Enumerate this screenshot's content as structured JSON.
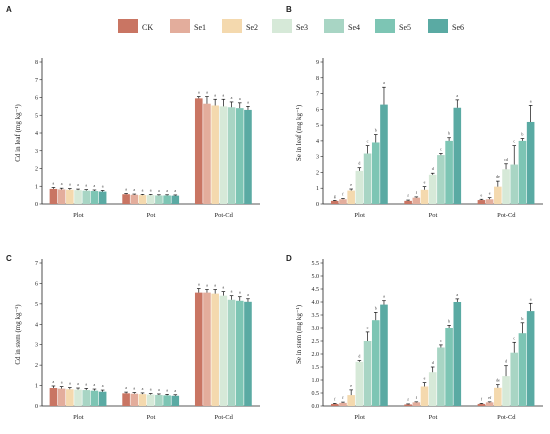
{
  "legend": {
    "items": [
      {
        "name": "CK",
        "color": "#c97563"
      },
      {
        "name": "Se1",
        "color": "#e3ad9c"
      },
      {
        "name": "Se2",
        "color": "#f4d9ae"
      },
      {
        "name": "Se3",
        "color": "#d6e9d8"
      },
      {
        "name": "Se4",
        "color": "#a8d5c4"
      },
      {
        "name": "Se5",
        "color": "#7dc5b4"
      },
      {
        "name": "Se6",
        "color": "#5aaaa3"
      }
    ]
  },
  "chart_data": [
    {
      "panel": "A",
      "type": "bar",
      "ylabel": "Cd in leaf (mg kg⁻¹)",
      "ylim": [
        0,
        8
      ],
      "yticks": [
        "0",
        "1",
        "2",
        "3",
        "4",
        "5",
        "6",
        "7",
        "8"
      ],
      "categories": [
        "Plot",
        "Pot",
        "Pot-Cd"
      ],
      "series": [
        {
          "name": "CK",
          "values": [
            0.85,
            0.55,
            5.95
          ],
          "errors": [
            0.08,
            0.04,
            0.1
          ],
          "letters": [
            "a",
            "a",
            "a"
          ]
        },
        {
          "name": "Se1",
          "values": [
            0.82,
            0.52,
            5.65
          ],
          "errors": [
            0.07,
            0.04,
            0.4
          ],
          "letters": [
            "a",
            "a",
            "a"
          ]
        },
        {
          "name": "Se2",
          "values": [
            0.8,
            0.5,
            5.55
          ],
          "errors": [
            0.07,
            0.04,
            0.35
          ],
          "letters": [
            "a",
            "a",
            "a"
          ]
        },
        {
          "name": "Se3",
          "values": [
            0.78,
            0.5,
            5.5
          ],
          "errors": [
            0.06,
            0.04,
            0.4
          ],
          "letters": [
            "a",
            "a",
            "a"
          ]
        },
        {
          "name": "Se4",
          "values": [
            0.75,
            0.48,
            5.45
          ],
          "errors": [
            0.06,
            0.04,
            0.3
          ],
          "letters": [
            "a",
            "a",
            "a"
          ]
        },
        {
          "name": "Se5",
          "values": [
            0.73,
            0.48,
            5.4
          ],
          "errors": [
            0.06,
            0.04,
            0.3
          ],
          "letters": [
            "a",
            "a",
            "a"
          ]
        },
        {
          "name": "Se6",
          "values": [
            0.7,
            0.47,
            5.3
          ],
          "errors": [
            0.06,
            0.04,
            0.2
          ],
          "letters": [
            "a",
            "a",
            "a"
          ]
        }
      ]
    },
    {
      "panel": "B",
      "type": "bar",
      "ylabel": "Se in leaf (mg kg⁻¹)",
      "ylim": [
        0,
        9
      ],
      "yticks": [
        "0",
        "1",
        "2",
        "3",
        "4",
        "5",
        "6",
        "7",
        "8",
        "9"
      ],
      "categories": [
        "Plot",
        "Pot",
        "Pot-Cd"
      ],
      "series": [
        {
          "name": "CK",
          "values": [
            0.2,
            0.2,
            0.25
          ],
          "errors": [
            0.03,
            0.05,
            0.05
          ],
          "letters": [
            "g",
            "f",
            "e"
          ]
        },
        {
          "name": "Se1",
          "values": [
            0.3,
            0.4,
            0.3
          ],
          "errors": [
            0.05,
            0.05,
            0.1
          ],
          "letters": [
            "f",
            "f",
            "e"
          ]
        },
        {
          "name": "Se2",
          "values": [
            0.85,
            0.9,
            1.1
          ],
          "errors": [
            0.1,
            0.2,
            0.35
          ],
          "letters": [
            "e",
            "e",
            "de"
          ]
        },
        {
          "name": "Se3",
          "values": [
            2.1,
            1.85,
            2.2
          ],
          "errors": [
            0.2,
            0.1,
            0.35
          ],
          "letters": [
            "d",
            "d",
            "cd"
          ]
        },
        {
          "name": "Se4",
          "values": [
            3.2,
            3.1,
            2.5
          ],
          "errors": [
            0.5,
            0.1,
            1.2
          ],
          "letters": [
            "c",
            "c",
            "c"
          ]
        },
        {
          "name": "Se5",
          "values": [
            3.9,
            4.0,
            4.0
          ],
          "errors": [
            0.5,
            0.2,
            0.15
          ],
          "letters": [
            "b",
            "b",
            "b"
          ]
        },
        {
          "name": "Se6",
          "values": [
            6.3,
            6.1,
            5.2
          ],
          "errors": [
            1.1,
            0.5,
            1.05
          ],
          "letters": [
            "a",
            "a",
            "a"
          ]
        }
      ]
    },
    {
      "panel": "C",
      "type": "bar",
      "ylabel": "Cd in stem (mg kg⁻¹)",
      "ylim": [
        0,
        7
      ],
      "yticks": [
        "0",
        "1",
        "2",
        "3",
        "4",
        "5",
        "6",
        "7"
      ],
      "categories": [
        "Plot",
        "Pot",
        "Pot-Cd"
      ],
      "series": [
        {
          "name": "CK",
          "values": [
            0.88,
            0.62,
            5.55
          ],
          "errors": [
            0.1,
            0.06,
            0.2
          ],
          "letters": [
            "a",
            "a",
            "a"
          ]
        },
        {
          "name": "Se1",
          "values": [
            0.85,
            0.6,
            5.55
          ],
          "errors": [
            0.1,
            0.06,
            0.15
          ],
          "letters": [
            "a",
            "a",
            "a"
          ]
        },
        {
          "name": "Se2",
          "values": [
            0.82,
            0.58,
            5.5
          ],
          "errors": [
            0.08,
            0.06,
            0.2
          ],
          "letters": [
            "a",
            "a",
            "a"
          ]
        },
        {
          "name": "Se3",
          "values": [
            0.8,
            0.56,
            5.4
          ],
          "errors": [
            0.08,
            0.05,
            0.2
          ],
          "letters": [
            "a",
            "a",
            "a"
          ]
        },
        {
          "name": "Se4",
          "values": [
            0.78,
            0.54,
            5.2
          ],
          "errors": [
            0.08,
            0.05,
            0.2
          ],
          "letters": [
            "a",
            "a",
            "a"
          ]
        },
        {
          "name": "Se5",
          "values": [
            0.75,
            0.52,
            5.15
          ],
          "errors": [
            0.08,
            0.05,
            0.2
          ],
          "letters": [
            "a",
            "a",
            "a"
          ]
        },
        {
          "name": "Se6",
          "values": [
            0.7,
            0.5,
            5.1
          ],
          "errors": [
            0.08,
            0.05,
            0.15
          ],
          "letters": [
            "a",
            "a",
            "a"
          ]
        }
      ]
    },
    {
      "panel": "D",
      "type": "bar",
      "ylabel": "Se in stem (mg kg⁻¹)",
      "ylim": [
        0,
        5.5
      ],
      "yticks": [
        "0.0",
        "0.5",
        "1.0",
        "1.5",
        "2.0",
        "2.5",
        "3.0",
        "3.5",
        "4.0",
        "4.5",
        "5.0",
        "5.5"
      ],
      "categories": [
        "Plot",
        "Pot",
        "Pot-Cd"
      ],
      "series": [
        {
          "name": "CK",
          "values": [
            0.08,
            0.06,
            0.08
          ],
          "errors": [
            0.02,
            0.02,
            0.02
          ],
          "letters": [
            "f",
            "f",
            "f"
          ]
        },
        {
          "name": "Se1",
          "values": [
            0.12,
            0.14,
            0.14
          ],
          "errors": [
            0.03,
            0.02,
            0.02
          ],
          "letters": [
            "f",
            "f",
            "ef"
          ]
        },
        {
          "name": "Se2",
          "values": [
            0.42,
            0.75,
            0.7
          ],
          "errors": [
            0.2,
            0.15,
            0.12
          ],
          "letters": [
            "e",
            "e",
            "de"
          ]
        },
        {
          "name": "Se3",
          "values": [
            1.7,
            1.3,
            1.15
          ],
          "errors": [
            0.05,
            0.2,
            0.4
          ],
          "letters": [
            "d",
            "d",
            "d"
          ]
        },
        {
          "name": "Se4",
          "values": [
            2.5,
            2.25,
            2.05
          ],
          "errors": [
            0.35,
            0.1,
            0.4
          ],
          "letters": [
            "c",
            "c",
            "c"
          ]
        },
        {
          "name": "Se5",
          "values": [
            3.3,
            3.0,
            2.8
          ],
          "errors": [
            0.3,
            0.1,
            0.4
          ],
          "letters": [
            "b",
            "b",
            "b"
          ]
        },
        {
          "name": "Se6",
          "values": [
            3.9,
            4.0,
            3.65
          ],
          "errors": [
            0.15,
            0.12,
            0.3
          ],
          "letters": [
            "a",
            "a",
            "a"
          ]
        }
      ]
    }
  ]
}
